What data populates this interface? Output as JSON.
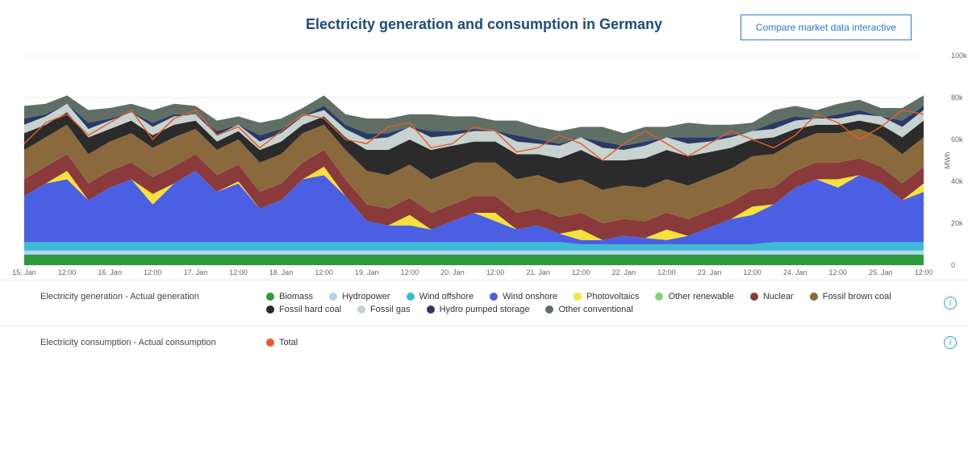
{
  "title": "Electricity generation and consumption in Germany",
  "compare_button_label": "Compare market data interactive",
  "chart": {
    "type": "stacked-area-with-line",
    "background_color": "#ffffff",
    "grid_color": "#e9e9e9",
    "y_axis_label": "MWh",
    "ylim": [
      0,
      100000
    ],
    "y_ticks": [
      {
        "v": 0,
        "label": "0"
      },
      {
        "v": 20000,
        "label": "20k"
      },
      {
        "v": 40000,
        "label": "40k"
      },
      {
        "v": 60000,
        "label": "60k"
      },
      {
        "v": 80000,
        "label": "80k"
      },
      {
        "v": 100000,
        "label": "100k"
      }
    ],
    "xlim": [
      0,
      42
    ],
    "x_ticks": [
      {
        "i": 0,
        "label": "15. Jan"
      },
      {
        "i": 2,
        "label": "12:00"
      },
      {
        "i": 4,
        "label": "16. Jan"
      },
      {
        "i": 6,
        "label": "12:00"
      },
      {
        "i": 8,
        "label": "17. Jan"
      },
      {
        "i": 10,
        "label": "12:00"
      },
      {
        "i": 12,
        "label": "18. Jan"
      },
      {
        "i": 14,
        "label": "12:00"
      },
      {
        "i": 16,
        "label": "19. Jan"
      },
      {
        "i": 18,
        "label": "12:00"
      },
      {
        "i": 20,
        "label": "20. Jan"
      },
      {
        "i": 22,
        "label": "12:00"
      },
      {
        "i": 24,
        "label": "21. Jan"
      },
      {
        "i": 26,
        "label": "12:00"
      },
      {
        "i": 28,
        "label": "22. Jan"
      },
      {
        "i": 30,
        "label": "12:00"
      },
      {
        "i": 32,
        "label": "23. Jan"
      },
      {
        "i": 34,
        "label": "12:00"
      },
      {
        "i": 36,
        "label": "24. Jan"
      },
      {
        "i": 38,
        "label": "12:00"
      },
      {
        "i": 40,
        "label": "25. Jan"
      },
      {
        "i": 42,
        "label": "12:00"
      }
    ],
    "stacked_series": [
      {
        "name": "Biomass",
        "color": "#2e9b3b",
        "values": [
          5,
          5,
          5,
          5,
          5,
          5,
          5,
          5,
          5,
          5,
          5,
          5,
          5,
          5,
          5,
          5,
          5,
          5,
          5,
          5,
          5,
          5,
          5,
          5,
          5,
          5,
          5,
          5,
          5,
          5,
          5,
          5,
          5,
          5,
          5,
          5,
          5,
          5,
          5,
          5,
          5,
          5,
          5
        ]
      },
      {
        "name": "Hydropower",
        "color": "#a9d4ea",
        "values": [
          2,
          2,
          2,
          2,
          2,
          2,
          2,
          2,
          2,
          2,
          2,
          2,
          2,
          2,
          2,
          2,
          2,
          2,
          2,
          2,
          2,
          2,
          2,
          2,
          2,
          2,
          2,
          2,
          2,
          2,
          2,
          2,
          2,
          2,
          2,
          2,
          2,
          2,
          2,
          2,
          2,
          2,
          2
        ]
      },
      {
        "name": "Wind offshore",
        "color": "#3fb9d4",
        "values": [
          4,
          4,
          4,
          4,
          4,
          4,
          4,
          4,
          4,
          4,
          4,
          4,
          4,
          4,
          4,
          4,
          4,
          4,
          4,
          4,
          4,
          4,
          4,
          4,
          4,
          4,
          3,
          3,
          3,
          3,
          3,
          3,
          3,
          3,
          3,
          4,
          4,
          4,
          4,
          4,
          4,
          4,
          4
        ]
      },
      {
        "name": "Wind onshore",
        "color": "#4b5fe3",
        "values": [
          22,
          28,
          30,
          20,
          26,
          30,
          18,
          28,
          34,
          24,
          28,
          16,
          20,
          30,
          32,
          22,
          10,
          8,
          8,
          6,
          10,
          14,
          10,
          6,
          8,
          4,
          2,
          2,
          4,
          3,
          2,
          4,
          8,
          12,
          14,
          18,
          26,
          30,
          26,
          32,
          28,
          20,
          24
        ]
      },
      {
        "name": "Photovoltaics",
        "color": "#f7e13b",
        "values": [
          0,
          0,
          4,
          0,
          0,
          0,
          5,
          0,
          0,
          0,
          1,
          0,
          0,
          0,
          4,
          0,
          0,
          0,
          5,
          0,
          0,
          0,
          4,
          0,
          0,
          0,
          5,
          0,
          0,
          0,
          5,
          0,
          0,
          0,
          4,
          0,
          0,
          0,
          4,
          0,
          0,
          0,
          4
        ]
      },
      {
        "name": "Other renewable",
        "color": "#8bcf74",
        "values": [
          0,
          0,
          0,
          0,
          0,
          0,
          0,
          0,
          0,
          0,
          0,
          0,
          0,
          0,
          0,
          0,
          0,
          0,
          0,
          0,
          0,
          0,
          0,
          0,
          0,
          0,
          0,
          0,
          0,
          0,
          0,
          0,
          0,
          0,
          0,
          0,
          0,
          0,
          0,
          0,
          0,
          0,
          0
        ]
      },
      {
        "name": "Nuclear",
        "color": "#8a3a3a",
        "values": [
          8,
          8,
          8,
          8,
          8,
          8,
          8,
          8,
          8,
          8,
          8,
          8,
          8,
          8,
          8,
          8,
          8,
          8,
          8,
          8,
          8,
          8,
          8,
          8,
          8,
          8,
          8,
          8,
          8,
          8,
          8,
          8,
          8,
          8,
          8,
          8,
          8,
          8,
          8,
          8,
          8,
          8,
          8
        ]
      },
      {
        "name": "Fossil brown coal",
        "color": "#8a6a3d",
        "values": [
          14,
          14,
          14,
          14,
          14,
          14,
          14,
          14,
          12,
          12,
          12,
          14,
          14,
          14,
          12,
          14,
          16,
          16,
          16,
          16,
          16,
          16,
          16,
          16,
          16,
          16,
          16,
          16,
          16,
          16,
          16,
          16,
          16,
          16,
          16,
          16,
          14,
          14,
          14,
          14,
          14,
          14,
          14
        ]
      },
      {
        "name": "Fossil hard coal",
        "color": "#2b2b2b",
        "values": [
          8,
          6,
          6,
          8,
          6,
          6,
          6,
          6,
          4,
          4,
          4,
          6,
          6,
          4,
          4,
          6,
          10,
          12,
          12,
          14,
          12,
          10,
          10,
          12,
          10,
          12,
          14,
          14,
          12,
          14,
          14,
          14,
          12,
          10,
          8,
          8,
          6,
          4,
          4,
          4,
          6,
          8,
          8
        ]
      },
      {
        "name": "Fossil gas",
        "color": "#c7d3d1",
        "values": [
          4,
          4,
          4,
          4,
          4,
          4,
          4,
          4,
          3,
          3,
          3,
          4,
          4,
          4,
          3,
          4,
          5,
          6,
          6,
          6,
          5,
          5,
          5,
          6,
          5,
          6,
          6,
          6,
          5,
          6,
          6,
          6,
          5,
          5,
          4,
          4,
          4,
          3,
          3,
          3,
          4,
          5,
          5
        ]
      },
      {
        "name": "Hydro pumped storage",
        "color": "#2b3a64",
        "values": [
          3,
          1,
          0,
          3,
          1,
          0,
          2,
          1,
          0,
          2,
          0,
          3,
          2,
          0,
          2,
          2,
          3,
          2,
          0,
          3,
          2,
          1,
          0,
          3,
          2,
          1,
          0,
          3,
          2,
          2,
          0,
          3,
          2,
          1,
          0,
          3,
          2,
          0,
          2,
          2,
          0,
          3,
          2
        ]
      },
      {
        "name": "Other conventional",
        "color": "#5f6f66",
        "values": [
          6,
          5,
          4,
          6,
          5,
          4,
          6,
          5,
          4,
          5,
          4,
          6,
          5,
          4,
          5,
          5,
          7,
          7,
          6,
          8,
          7,
          6,
          5,
          7,
          6,
          6,
          5,
          7,
          6,
          7,
          5,
          7,
          6,
          5,
          4,
          6,
          5,
          4,
          5,
          5,
          4,
          6,
          5
        ]
      }
    ],
    "line_series": {
      "name": "Total",
      "color": "#e85b28",
      "stroke_width": 1.4,
      "values_k": [
        58,
        68,
        72,
        62,
        68,
        74,
        60,
        70,
        74,
        62,
        66,
        56,
        64,
        72,
        70,
        60,
        58,
        66,
        68,
        56,
        58,
        66,
        64,
        54,
        56,
        62,
        58,
        50,
        58,
        64,
        58,
        52,
        58,
        64,
        60,
        56,
        62,
        72,
        68,
        60,
        66,
        74,
        72
      ]
    }
  },
  "legend_generation": {
    "title": "Electricity generation - Actual generation",
    "items": [
      {
        "label": "Biomass",
        "color": "#2e9b3b"
      },
      {
        "label": "Hydropower",
        "color": "#a9d4ea"
      },
      {
        "label": "Wind offshore",
        "color": "#3fb9d4"
      },
      {
        "label": "Wind onshore",
        "color": "#4b5fe3"
      },
      {
        "label": "Photovoltaics",
        "color": "#f7e13b"
      },
      {
        "label": "Other renewable",
        "color": "#8bcf74"
      },
      {
        "label": "Nuclear",
        "color": "#8a3a3a"
      },
      {
        "label": "Fossil brown coal",
        "color": "#8a6a3d"
      },
      {
        "label": "Fossil hard coal",
        "color": "#2b2b2b"
      },
      {
        "label": "Fossil gas",
        "color": "#c7d3d1"
      },
      {
        "label": "Hydro pumped storage",
        "color": "#2b3a64"
      },
      {
        "label": "Other conventional",
        "color": "#5f6f66"
      }
    ]
  },
  "legend_consumption": {
    "title": "Electricity consumption - Actual consumption",
    "items": [
      {
        "label": "Total",
        "color": "#e85b28"
      }
    ]
  }
}
